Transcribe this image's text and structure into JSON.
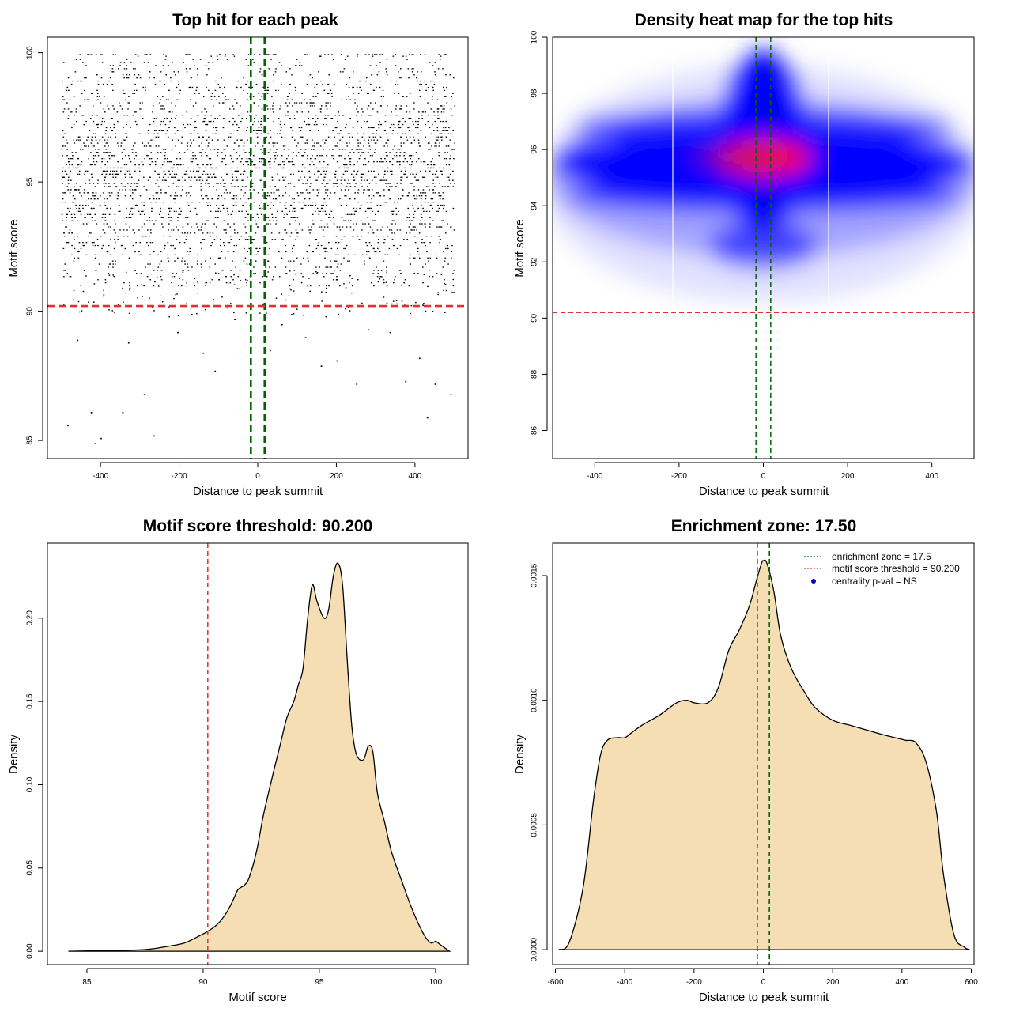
{
  "chart_data": [
    {
      "type": "scatter",
      "title": "Top hit for each peak",
      "xlabel": "Distance to peak summit",
      "ylabel": "Motif score",
      "xlim": [
        -535,
        535
      ],
      "ylim": [
        84.3,
        100.6
      ],
      "xticks": [
        "-400",
        "-200",
        "0",
        "200",
        "400"
      ],
      "yticks": [
        "85",
        "90",
        "95",
        "100"
      ],
      "hlines": [
        {
          "y": 90.2,
          "color": "#e03030",
          "style": "dashed"
        }
      ],
      "vlines": [
        {
          "x": -17.5,
          "color": "#006400",
          "style": "dashed"
        },
        {
          "x": 17.5,
          "color": "#006400",
          "style": "dashed"
        }
      ],
      "points_description": "thousands of dense points uniformly spread over x from -500 to 500, concentrated in y 91-99.5",
      "sparse_points": [
        {
          "x": -415,
          "y": 84.9
        },
        {
          "x": -400,
          "y": 85.1
        },
        {
          "x": -485,
          "y": 85.6
        },
        {
          "x": -265,
          "y": 85.2
        },
        {
          "x": -425,
          "y": 86.1
        },
        {
          "x": -345,
          "y": 86.1
        },
        {
          "x": 430,
          "y": 85.9
        },
        {
          "x": 490,
          "y": 86.8
        },
        {
          "x": 450,
          "y": 87.2
        },
        {
          "x": 375,
          "y": 87.3
        },
        {
          "x": -290,
          "y": 86.8
        },
        {
          "x": 30,
          "y": 88.5
        },
        {
          "x": -460,
          "y": 88.9
        },
        {
          "x": -140,
          "y": 88.4
        },
        {
          "x": 200,
          "y": 88.1
        },
        {
          "x": 280,
          "y": 89.3
        },
        {
          "x": -60,
          "y": 89.7
        },
        {
          "x": 120,
          "y": 89.0
        },
        {
          "x": 335,
          "y": 89.2
        },
        {
          "x": -205,
          "y": 89.2
        },
        {
          "x": 60,
          "y": 89.5
        },
        {
          "x": 410,
          "y": 88.2
        },
        {
          "x": -330,
          "y": 88.8
        },
        {
          "x": 160,
          "y": 87.9
        },
        {
          "x": -110,
          "y": 87.7
        },
        {
          "x": 250,
          "y": 87.2
        }
      ]
    },
    {
      "type": "heatmap",
      "title": "Density heat map for the top hits",
      "xlabel": "Distance to peak summit",
      "ylabel": "Motif score",
      "xlim": [
        -500,
        500
      ],
      "ylim": [
        85,
        100
      ],
      "xticks": [
        "-400",
        "-200",
        "0",
        "200",
        "400"
      ],
      "yticks": [
        "86",
        "88",
        "90",
        "92",
        "94",
        "96",
        "98",
        "100"
      ],
      "colors": {
        "low": "#ffffff",
        "mid": "#0000ff",
        "high": "#ff0000"
      },
      "hotspots": [
        {
          "x": 0,
          "y": 95.7,
          "intensity": 1.0
        },
        {
          "x": 0,
          "y": 97.2,
          "intensity": 0.75
        },
        {
          "x": 0,
          "y": 98.6,
          "intensity": 0.35
        },
        {
          "x": -400,
          "y": 95.8,
          "intensity": 0.75
        },
        {
          "x": 400,
          "y": 95.4,
          "intensity": 0.75
        }
      ],
      "hlines": [
        {
          "y": 90.2,
          "color": "#e03030",
          "style": "dashed"
        }
      ],
      "vlines": [
        {
          "x": -17.5,
          "color": "#006400",
          "style": "dashed"
        },
        {
          "x": 17.5,
          "color": "#006400",
          "style": "dashed"
        }
      ]
    },
    {
      "type": "area",
      "title": "Motif score threshold: 90.200",
      "xlabel": "Motif score",
      "ylabel": "Density",
      "xlim": [
        83.3,
        101.4
      ],
      "ylim": [
        -0.008,
        0.245
      ],
      "xticks": [
        "85",
        "90",
        "95",
        "100"
      ],
      "yticks": [
        "0.00",
        "0.05",
        "0.10",
        "0.15",
        "0.20"
      ],
      "fill": "#f5deb3",
      "x": [
        84.2,
        86.0,
        87.5,
        88.5,
        89.2,
        89.8,
        90.2,
        90.6,
        91.0,
        91.3,
        91.5,
        91.8,
        92.0,
        92.3,
        92.6,
        93.0,
        93.3,
        93.6,
        93.9,
        94.1,
        94.3,
        94.5,
        94.7,
        94.9,
        95.2,
        95.4,
        95.6,
        95.8,
        96.0,
        96.2,
        96.4,
        96.6,
        96.9,
        97.1,
        97.3,
        97.5,
        97.8,
        98.1,
        98.5,
        99.0,
        99.5,
        99.8,
        100.0,
        100.2,
        100.6
      ],
      "y": [
        0.0,
        0.0005,
        0.001,
        0.003,
        0.005,
        0.009,
        0.012,
        0.016,
        0.023,
        0.031,
        0.037,
        0.04,
        0.045,
        0.06,
        0.082,
        0.106,
        0.123,
        0.14,
        0.15,
        0.16,
        0.17,
        0.2,
        0.22,
        0.21,
        0.2,
        0.205,
        0.225,
        0.233,
        0.22,
        0.175,
        0.135,
        0.118,
        0.115,
        0.123,
        0.12,
        0.095,
        0.078,
        0.06,
        0.044,
        0.025,
        0.01,
        0.005,
        0.006,
        0.004,
        0.0
      ]
    },
    {
      "type": "area",
      "title": "Enrichment zone: 17.50",
      "xlabel": "Distance to peak summit",
      "ylabel": "Density",
      "xlim": [
        -608,
        608
      ],
      "ylim": [
        -6e-05,
        0.00163
      ],
      "xticks": [
        "-600",
        "-400",
        "-200",
        "0",
        "200",
        "400",
        "600"
      ],
      "yticks": [
        "0.0000",
        "0.0005",
        "0.0010",
        "0.0015"
      ],
      "fill": "#f5deb3",
      "x": [
        -590,
        -560,
        -520,
        -490,
        -470,
        -450,
        -420,
        -400,
        -380,
        -350,
        -300,
        -250,
        -220,
        -200,
        -160,
        -130,
        -100,
        -70,
        -40,
        -20,
        -5,
        0,
        10,
        30,
        50,
        80,
        120,
        150,
        200,
        250,
        300,
        350,
        380,
        410,
        440,
        470,
        500,
        520,
        550,
        580,
        595
      ],
      "y": [
        0.0,
        3e-05,
        0.00025,
        0.0006,
        0.00078,
        0.00084,
        0.00085,
        0.00085,
        0.00087,
        0.0009,
        0.00094,
        0.00099,
        0.001,
        0.00099,
        0.00099,
        0.00105,
        0.0012,
        0.00128,
        0.00138,
        0.00148,
        0.00155,
        0.00156,
        0.00155,
        0.00144,
        0.00126,
        0.00113,
        0.00103,
        0.00097,
        0.00092,
        0.0009,
        0.00088,
        0.00086,
        0.00085,
        0.00084,
        0.00083,
        0.00075,
        0.00055,
        0.0003,
        6e-05,
        1e-05,
        0.0
      ],
      "vlines": [
        {
          "x": -17.5,
          "color": "#006400",
          "style": "dashed"
        },
        {
          "x": 17.5,
          "color": "#006400",
          "style": "dashed"
        }
      ],
      "legend": {
        "placement": "top-right",
        "entries": [
          {
            "label": "enrichment zone = 17.5",
            "color": "#006400",
            "marker": "dotted-line"
          },
          {
            "label": "motif score threshold = 90.200",
            "color": "#e03030",
            "marker": "dotted-line"
          },
          {
            "label": "centrality p-val = NS",
            "color": "#0000cc",
            "marker": "dot"
          }
        ]
      }
    }
  ]
}
